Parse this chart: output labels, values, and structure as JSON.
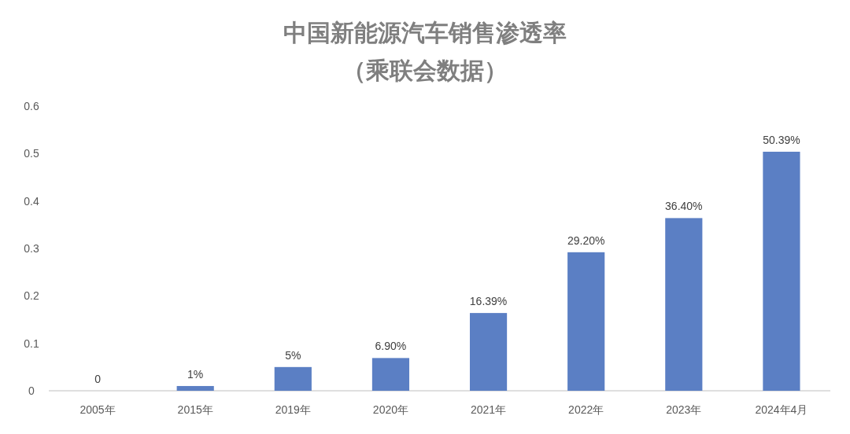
{
  "chart_data": {
    "type": "bar",
    "title": "中国新能源汽车销售渗透率",
    "subtitle": "（乘联会数据）",
    "categories": [
      "2005年",
      "2015年",
      "2019年",
      "2020年",
      "2021年",
      "2022年",
      "2023年",
      "2024年4月"
    ],
    "values": [
      0,
      0.01,
      0.05,
      0.069,
      0.1639,
      0.292,
      0.364,
      0.5039
    ],
    "value_labels": [
      "0",
      "1%",
      "5%",
      "6.90%",
      "16.39%",
      "29.20%",
      "36.40%",
      "50.39%"
    ],
    "color": "#5b7fc4",
    "ylim": [
      0,
      0.6
    ],
    "yticks": [
      0,
      0.1,
      0.2,
      0.3,
      0.4,
      0.5,
      0.6
    ]
  }
}
